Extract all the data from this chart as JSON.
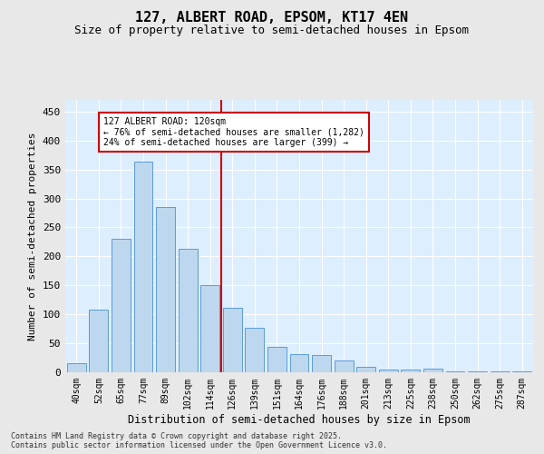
{
  "title": "127, ALBERT ROAD, EPSOM, KT17 4EN",
  "subtitle": "Size of property relative to semi-detached houses in Epsom",
  "xlabel": "Distribution of semi-detached houses by size in Epsom",
  "ylabel": "Number of semi-detached properties",
  "categories": [
    "40sqm",
    "52sqm",
    "65sqm",
    "77sqm",
    "89sqm",
    "102sqm",
    "114sqm",
    "126sqm",
    "139sqm",
    "151sqm",
    "164sqm",
    "176sqm",
    "188sqm",
    "201sqm",
    "213sqm",
    "225sqm",
    "238sqm",
    "250sqm",
    "262sqm",
    "275sqm",
    "287sqm"
  ],
  "values": [
    15,
    108,
    230,
    363,
    285,
    213,
    150,
    112,
    76,
    44,
    32,
    30,
    21,
    10,
    5,
    5,
    6,
    2,
    1,
    1,
    2
  ],
  "bar_color": "#bdd7ee",
  "bar_edge_color": "#5b9bd5",
  "reference_line_x": 7,
  "reference_line_label": "127 ALBERT ROAD: 120sqm",
  "annotation_line1": "← 76% of semi-detached houses are smaller (1,282)",
  "annotation_line2": "24% of semi-detached houses are larger (399) →",
  "annotation_box_color": "#ffffff",
  "annotation_box_edge": "#cc0000",
  "vline_color": "#cc0000",
  "ylim": [
    0,
    470
  ],
  "yticks": [
    0,
    50,
    100,
    150,
    200,
    250,
    300,
    350,
    400,
    450
  ],
  "background_color": "#ddeeff",
  "grid_color": "#ffffff",
  "fig_background": "#e8e8e8",
  "title_fontsize": 11,
  "subtitle_fontsize": 9,
  "footer_line1": "Contains HM Land Registry data © Crown copyright and database right 2025.",
  "footer_line2": "Contains public sector information licensed under the Open Government Licence v3.0."
}
